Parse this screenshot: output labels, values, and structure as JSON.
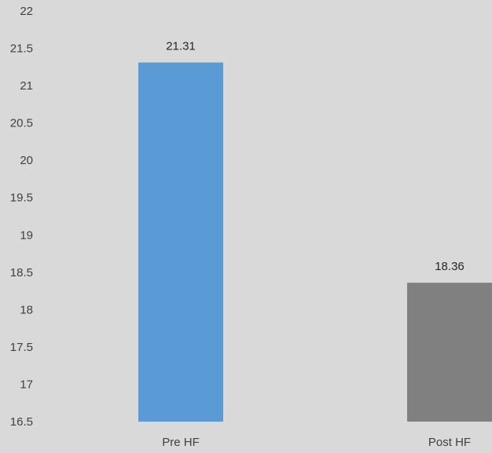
{
  "chart_data": {
    "type": "bar",
    "categories": [
      "Pre HF",
      "Post HF"
    ],
    "values": [
      21.31,
      18.36
    ],
    "value_labels": [
      "21.31",
      "18.36"
    ],
    "bar_colors": [
      "#5b9bd5",
      "#808080"
    ],
    "ylim": [
      16.5,
      22
    ],
    "yticks": [
      "16.5",
      "17",
      "17.5",
      "18",
      "18.5",
      "19",
      "19.5",
      "20",
      "20.5",
      "21",
      "21.5",
      "22"
    ],
    "grid": false,
    "legend": "none",
    "background": "#d9d9d9",
    "title": "",
    "xlabel": "",
    "ylabel": ""
  }
}
